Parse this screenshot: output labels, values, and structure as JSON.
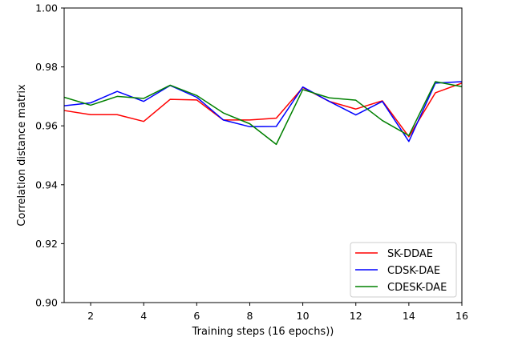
{
  "chart_data": {
    "type": "line",
    "title": "",
    "xlabel": "Training steps (16 epochs))",
    "ylabel": "Correlation distance matrix",
    "xlim": [
      1,
      16
    ],
    "ylim": [
      0.9,
      1.0
    ],
    "xticks": [
      2,
      4,
      6,
      8,
      10,
      12,
      14,
      16
    ],
    "xtick_labels": [
      "2",
      "4",
      "6",
      "8",
      "10",
      "12",
      "14",
      "16"
    ],
    "yticks": [
      0.9,
      0.92,
      0.94,
      0.96,
      0.98,
      1.0
    ],
    "ytick_labels": [
      "0.90",
      "0.92",
      "0.94",
      "0.96",
      "0.98",
      "1.00"
    ],
    "grid": false,
    "legend_position": "lower-right",
    "x": [
      1,
      2,
      3,
      4,
      5,
      6,
      7,
      8,
      9,
      10,
      11,
      12,
      13,
      14,
      15,
      16
    ],
    "series": [
      {
        "name": "SK-DDAE",
        "color": "#ff0000",
        "values": [
          0.9652,
          0.9638,
          0.9638,
          0.9615,
          0.969,
          0.9688,
          0.962,
          0.962,
          0.9626,
          0.973,
          0.9683,
          0.9657,
          0.9685,
          0.9563,
          0.9712,
          0.9745
        ]
      },
      {
        "name": "CDSK-DAE",
        "color": "#0000ff",
        "values": [
          0.9668,
          0.9678,
          0.9717,
          0.9683,
          0.9737,
          0.9697,
          0.962,
          0.9597,
          0.9598,
          0.9732,
          0.9683,
          0.9637,
          0.9683,
          0.9547,
          0.9745,
          0.975
        ]
      },
      {
        "name": "CDESK-DAE",
        "color": "#008000",
        "values": [
          0.9697,
          0.967,
          0.97,
          0.9693,
          0.9738,
          0.9703,
          0.9644,
          0.9607,
          0.9537,
          0.9723,
          0.9695,
          0.9687,
          0.9618,
          0.9567,
          0.975,
          0.9733
        ]
      }
    ]
  }
}
